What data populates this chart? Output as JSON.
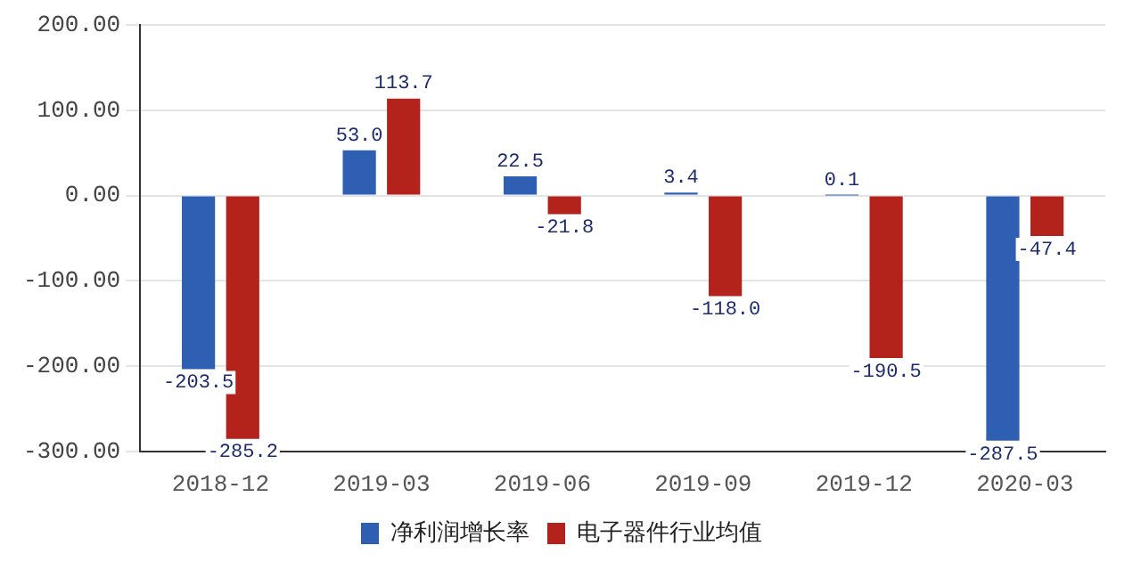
{
  "chart_data": {
    "type": "bar",
    "categories": [
      "2018-12",
      "2019-03",
      "2019-06",
      "2019-09",
      "2019-12",
      "2020-03"
    ],
    "series": [
      {
        "name": "净利润增长率",
        "color": "#2f5fb3",
        "values": [
          -203.5,
          53.0,
          22.5,
          3.4,
          0.1,
          -287.5
        ],
        "value_labels": [
          "-203.5",
          "53.0",
          "22.5",
          "3.4",
          "0.1",
          "-287.5"
        ]
      },
      {
        "name": "电子器件行业均值",
        "color": "#b3221b",
        "values": [
          -285.2,
          113.7,
          -21.8,
          -118.0,
          -190.5,
          -47.4
        ],
        "value_labels": [
          "-285.2",
          "113.7",
          "-21.8",
          "-118.0",
          "-190.5",
          "-47.4"
        ]
      }
    ],
    "ylim": [
      -300,
      200
    ],
    "yticks": [
      {
        "value": -300,
        "label": "-300.00"
      },
      {
        "value": -200,
        "label": "-200.00"
      },
      {
        "value": -100,
        "label": "-100.00"
      },
      {
        "value": 0,
        "label": "0.00"
      },
      {
        "value": 100,
        "label": "100.00"
      },
      {
        "value": 200,
        "label": "200.00"
      }
    ],
    "grid": "y",
    "legend": "bottom"
  }
}
